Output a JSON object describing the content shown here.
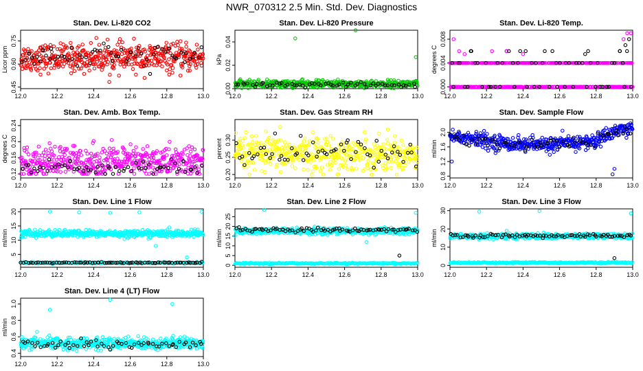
{
  "title": "NWR_070312  2.5 Min. Std. Dev. Diagnostics",
  "colors": {
    "red": "#ff0000",
    "green": "#00cc00",
    "magenta": "#ff00ff",
    "yellow": "#ffff00",
    "blue": "#0000ff",
    "cyan": "#00ffff",
    "black": "#000000"
  },
  "chart_data": [
    {
      "type": "scatter",
      "title": "Stan. Dev. Li-820 CO2",
      "ylabel": "Licor ppm",
      "xlim": [
        12.0,
        13.0
      ],
      "xticks": [
        12.0,
        12.2,
        12.4,
        12.6,
        12.8,
        13.0
      ],
      "ylim": [
        0.44,
        0.82
      ],
      "yticks": [
        0.45,
        0.6,
        0.75
      ],
      "ytick_labels": [
        "0.45",
        "0.60",
        "0.75"
      ],
      "series": [
        {
          "name": "main",
          "color": "red",
          "n": 480,
          "mean": 0.64,
          "sd": 0.045,
          "min": 0.46,
          "max": 0.8
        },
        {
          "name": "flagged",
          "color": "black",
          "n": 60,
          "mean": 0.65,
          "sd": 0.04,
          "min": 0.52,
          "max": 0.78
        }
      ]
    },
    {
      "type": "scatter",
      "title": "Stan. Dev. Li-820 Pressure",
      "ylabel": "kPa",
      "xlim": [
        12.0,
        13.0
      ],
      "xticks": [
        12.0,
        12.2,
        12.4,
        12.6,
        12.8,
        13.0
      ],
      "ylim": [
        0.0,
        0.05
      ],
      "yticks": [
        0.0,
        0.02,
        0.04
      ],
      "ytick_labels": [
        "0.00",
        "0.02",
        "0.04"
      ],
      "series": [
        {
          "name": "main",
          "color": "green",
          "n": 480,
          "mean": 0.004,
          "sd": 0.0015,
          "min": 0.0005,
          "max": 0.008
        },
        {
          "name": "flagged",
          "color": "black",
          "n": 60,
          "mean": 0.003,
          "sd": 0.0012,
          "min": 0.0005,
          "max": 0.006
        }
      ],
      "outliers": [
        {
          "x": 12.33,
          "y": 0.043,
          "color": "green"
        },
        {
          "x": 12.66,
          "y": 0.05,
          "color": "green"
        },
        {
          "x": 12.99,
          "y": 0.027,
          "color": "green"
        }
      ]
    },
    {
      "type": "scatter",
      "title": "Stan. Dev. Li-820 Temp.",
      "ylabel": "degrees C",
      "xlim": [
        12.0,
        13.0
      ],
      "xticks": [
        12.0,
        12.2,
        12.4,
        12.6,
        12.8,
        13.0
      ],
      "ylim": [
        -0.0003,
        0.0095
      ],
      "yticks": [
        0.0,
        0.004,
        0.008
      ],
      "ytick_labels": [
        "0.000",
        "0.004",
        "0.008"
      ],
      "series": [
        {
          "name": "main",
          "color": "magenta",
          "levels": [
            0.0,
            0.004
          ],
          "n": 480
        },
        {
          "name": "flagged",
          "color": "black",
          "levels": [
            0.0,
            0.004,
            0.006
          ],
          "n": 60
        }
      ],
      "outliers": [
        {
          "x": 12.02,
          "y": 0.008,
          "color": "magenta"
        },
        {
          "x": 12.05,
          "y": 0.006,
          "color": "magenta"
        },
        {
          "x": 12.08,
          "y": 0.0055,
          "color": "magenta"
        },
        {
          "x": 12.23,
          "y": 0.006,
          "color": "magenta"
        },
        {
          "x": 12.31,
          "y": 0.006,
          "color": "magenta"
        },
        {
          "x": 12.4,
          "y": 0.0055,
          "color": "magenta"
        },
        {
          "x": 12.95,
          "y": 0.008,
          "color": "magenta"
        },
        {
          "x": 12.97,
          "y": 0.009,
          "color": "magenta"
        },
        {
          "x": 12.99,
          "y": 0.009,
          "color": "magenta"
        },
        {
          "x": 12.96,
          "y": 0.007,
          "color": "black"
        },
        {
          "x": 12.98,
          "y": 0.008,
          "color": "black"
        },
        {
          "x": 12.93,
          "y": 0.006,
          "color": "black"
        },
        {
          "x": 12.74,
          "y": 0.0055,
          "color": "black"
        }
      ]
    },
    {
      "type": "scatter",
      "title": "Stan. Dev. Amb. Box Temp.",
      "ylabel": "degrees C",
      "xlim": [
        12.0,
        13.0
      ],
      "xticks": [
        12.0,
        12.2,
        12.4,
        12.6,
        12.8,
        13.0
      ],
      "ylim": [
        0.11,
        0.255
      ],
      "yticks": [
        0.12,
        0.16,
        0.2,
        0.24
      ],
      "ytick_labels": [
        "0.12",
        "0.16",
        "0.20",
        "0.24"
      ],
      "series": [
        {
          "name": "main",
          "color": "magenta",
          "n": 480,
          "mean": 0.15,
          "sd": 0.02,
          "min": 0.12,
          "max": 0.25
        },
        {
          "name": "flagged",
          "color": "black",
          "n": 60,
          "mean": 0.135,
          "sd": 0.01,
          "min": 0.12,
          "max": 0.16
        }
      ]
    },
    {
      "type": "scatter",
      "title": "Stan. Dev. Gas Stream RH",
      "ylabel": "percent",
      "xlim": [
        12.0,
        13.0
      ],
      "xticks": [
        12.0,
        12.2,
        12.4,
        12.6,
        12.8,
        13.0
      ],
      "ylim": [
        0.19,
        0.36
      ],
      "yticks": [
        0.2,
        0.25,
        0.3
      ],
      "ytick_labels": [
        "0.20",
        "0.25",
        "0.30"
      ],
      "series": [
        {
          "name": "main",
          "color": "yellow",
          "n": 480,
          "mean": 0.26,
          "sd": 0.025,
          "min": 0.2,
          "max": 0.35
        },
        {
          "name": "flagged",
          "color": "black",
          "n": 60,
          "mean": 0.265,
          "sd": 0.02,
          "min": 0.22,
          "max": 0.33
        }
      ]
    },
    {
      "type": "scatter",
      "title": "Stan. Dev. Sample Flow",
      "ylabel": "ml/min",
      "xlim": [
        12.0,
        13.0
      ],
      "xticks": [
        12.0,
        12.2,
        12.4,
        12.6,
        12.8,
        13.0
      ],
      "ylim": [
        0.75,
        2.35
      ],
      "yticks": [
        0.8,
        1.2,
        1.6,
        2.0
      ],
      "ytick_labels": [
        "0.8",
        "1.2",
        "1.6",
        "2.0"
      ],
      "series": [
        {
          "name": "main",
          "color": "blue",
          "n": 480,
          "curve": [
            [
              12.0,
              1.9
            ],
            [
              12.3,
              1.7
            ],
            [
              12.5,
              1.65
            ],
            [
              12.8,
              1.75
            ],
            [
              12.9,
              2.05
            ],
            [
              13.0,
              2.1
            ]
          ],
          "sd": 0.1,
          "min": 0.8,
          "max": 2.3
        },
        {
          "name": "flagged",
          "color": "black",
          "n": 60,
          "curve": [
            [
              12.0,
              1.85
            ],
            [
              12.3,
              1.7
            ],
            [
              12.5,
              1.65
            ],
            [
              12.8,
              1.75
            ],
            [
              12.9,
              2.0
            ],
            [
              13.0,
              2.05
            ]
          ],
          "sd": 0.08,
          "min": 1.4,
          "max": 2.3
        }
      ],
      "outliers": [
        {
          "x": 12.01,
          "y": 1.2,
          "color": "blue"
        },
        {
          "x": 12.89,
          "y": 0.85,
          "color": "blue"
        },
        {
          "x": 12.9,
          "y": 1.0,
          "color": "blue"
        }
      ]
    },
    {
      "type": "scatter",
      "title": "Stan. Dev. Line 1 Flow",
      "ylabel": "ml/min",
      "xlim": [
        12.0,
        13.0
      ],
      "xticks": [
        12.0,
        12.2,
        12.4,
        12.6,
        12.8,
        13.0
      ],
      "ylim": [
        0.5,
        21.0
      ],
      "yticks": [
        5,
        10,
        15,
        20
      ],
      "ytick_labels": [
        "5",
        "10",
        "15",
        "20"
      ],
      "series": [
        {
          "name": "main",
          "color": "cyan",
          "n": 480,
          "mean": 12.3,
          "sd": 0.6,
          "min": 9.0,
          "max": 14.5
        },
        {
          "name": "low",
          "color": "cyan",
          "n": 200,
          "mean": 2.1,
          "sd": 0.15,
          "min": 1.6,
          "max": 2.8
        },
        {
          "name": "flagged",
          "color": "black",
          "n": 80,
          "mean": 2.1,
          "sd": 0.1,
          "min": 1.8,
          "max": 2.6
        }
      ],
      "outliers": [
        {
          "x": 12.16,
          "y": 20.0,
          "color": "cyan"
        },
        {
          "x": 12.32,
          "y": 19.8,
          "color": "cyan"
        },
        {
          "x": 12.49,
          "y": 19.6,
          "color": "cyan"
        },
        {
          "x": 12.65,
          "y": 19.8,
          "color": "cyan"
        },
        {
          "x": 12.99,
          "y": 20.0,
          "color": "cyan"
        },
        {
          "x": 12.74,
          "y": 8.0,
          "color": "cyan"
        },
        {
          "x": 12.91,
          "y": 4.0,
          "color": "cyan"
        }
      ]
    },
    {
      "type": "scatter",
      "title": "Stan. Dev. Line 2 Flow",
      "ylabel": "ml/min",
      "xlim": [
        12.0,
        13.0
      ],
      "xticks": [
        12.0,
        12.2,
        12.4,
        12.6,
        12.8,
        13.0
      ],
      "ylim": [
        -1.0,
        29.0
      ],
      "yticks": [
        0,
        5,
        10,
        15,
        20,
        25
      ],
      "ytick_labels": [
        "0",
        "5",
        "10",
        "15",
        "20",
        "25"
      ],
      "series": [
        {
          "name": "main",
          "color": "cyan",
          "n": 480,
          "mean": 17.5,
          "sd": 0.8,
          "min": 12.0,
          "max": 21.0
        },
        {
          "name": "low",
          "color": "cyan",
          "n": 250,
          "mean": 1.0,
          "sd": 0.15,
          "min": 0.5,
          "max": 1.6
        },
        {
          "name": "flagged",
          "color": "black",
          "n": 80,
          "mean": 18.2,
          "sd": 0.5,
          "min": 16.0,
          "max": 20.0
        }
      ],
      "outliers": [
        {
          "x": 12.16,
          "y": 28.5,
          "color": "cyan"
        },
        {
          "x": 12.99,
          "y": 27.0,
          "color": "cyan"
        },
        {
          "x": 12.72,
          "y": 12.0,
          "color": "cyan"
        },
        {
          "x": 12.9,
          "y": 5.0,
          "color": "black"
        }
      ]
    },
    {
      "type": "scatter",
      "title": "Stan. Dev. Line 3 Flow",
      "ylabel": "ml/min",
      "xlim": [
        12.0,
        13.0
      ],
      "xticks": [
        12.0,
        12.2,
        12.4,
        12.6,
        12.8,
        13.0
      ],
      "ylim": [
        -1.0,
        31.0
      ],
      "yticks": [
        0,
        10,
        20,
        30
      ],
      "ytick_labels": [
        "0",
        "10",
        "20",
        "30"
      ],
      "series": [
        {
          "name": "main",
          "color": "cyan",
          "n": 480,
          "mean": 16.0,
          "sd": 0.7,
          "min": 12.0,
          "max": 20.0
        },
        {
          "name": "low",
          "color": "cyan",
          "n": 250,
          "mean": 1.5,
          "sd": 0.2,
          "min": 0.8,
          "max": 2.2
        },
        {
          "name": "flagged",
          "color": "black",
          "n": 80,
          "mean": 16.2,
          "sd": 0.5,
          "min": 14.5,
          "max": 18.0
        }
      ],
      "outliers": [
        {
          "x": 12.16,
          "y": 29.5,
          "color": "cyan"
        },
        {
          "x": 12.49,
          "y": 29.8,
          "color": "cyan"
        },
        {
          "x": 12.99,
          "y": 28.5,
          "color": "cyan"
        },
        {
          "x": 12.31,
          "y": 19.0,
          "color": "cyan"
        },
        {
          "x": 12.9,
          "y": 4.0,
          "color": "black"
        }
      ]
    },
    {
      "type": "scatter",
      "title": "Stan. Dev. Line 4 (LT) Flow",
      "ylabel": "ml/min",
      "xlim": [
        12.0,
        13.0
      ],
      "xticks": [
        12.0,
        12.2,
        12.4,
        12.6,
        12.8,
        13.0
      ],
      "ylim": [
        0.36,
        1.07
      ],
      "yticks": [
        0.4,
        0.6,
        0.8,
        1.0
      ],
      "ytick_labels": [
        "0.4",
        "0.6",
        "0.8",
        "1.0"
      ],
      "series": [
        {
          "name": "main",
          "color": "cyan",
          "n": 480,
          "mean": 0.52,
          "sd": 0.035,
          "min": 0.4,
          "max": 0.68
        },
        {
          "name": "flagged",
          "color": "black",
          "n": 60,
          "mean": 0.52,
          "sd": 0.035,
          "min": 0.42,
          "max": 0.64
        }
      ],
      "outliers": [
        {
          "x": 12.16,
          "y": 0.93,
          "color": "cyan"
        },
        {
          "x": 12.49,
          "y": 1.05,
          "color": "cyan"
        },
        {
          "x": 12.83,
          "y": 1.0,
          "color": "cyan"
        },
        {
          "x": 12.09,
          "y": 0.66,
          "color": "cyan"
        }
      ]
    }
  ]
}
